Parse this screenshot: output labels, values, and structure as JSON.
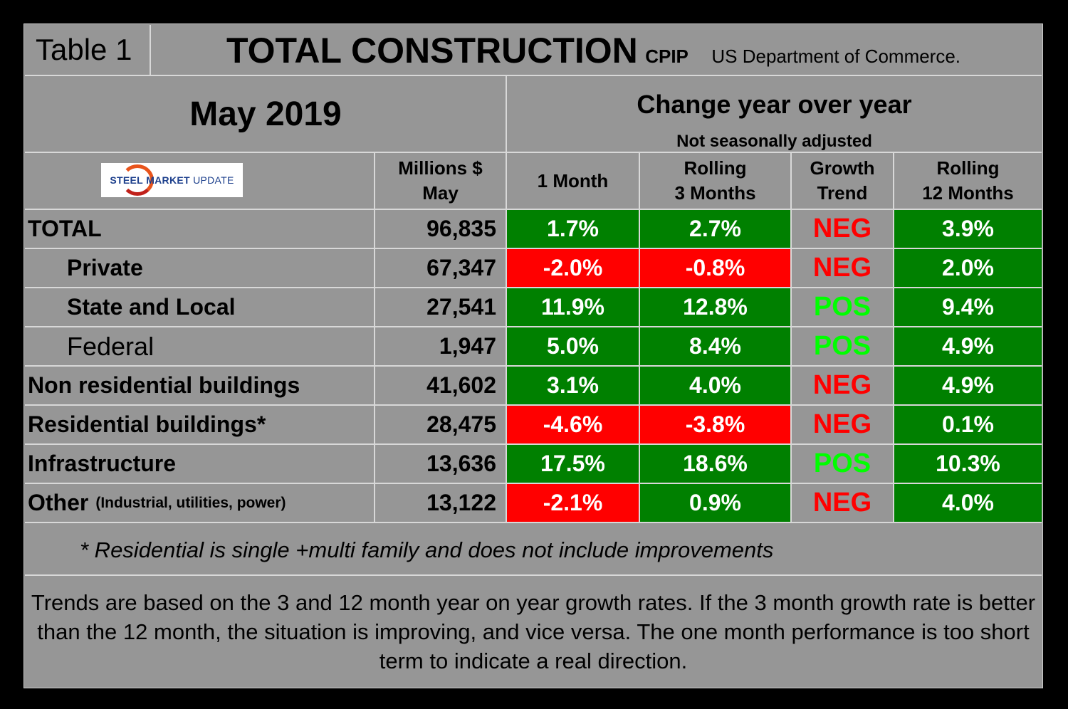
{
  "title": {
    "table_label": "Table 1",
    "main": "TOTAL CONSTRUCTION",
    "sub": "CPIP",
    "source": "US Department of Commerce."
  },
  "period": "May 2019",
  "change_header": "Change year over year",
  "change_sub": "Not seasonally adjusted",
  "logo": {
    "text_bold": "STEEL",
    "text_mid": "MARKET",
    "text_light": "UPDATE"
  },
  "columns": {
    "millions": [
      "Millions $",
      "May"
    ],
    "one_month": [
      "1 Month"
    ],
    "rolling3": [
      "Rolling",
      "3 Months"
    ],
    "trend": [
      "Growth",
      "Trend"
    ],
    "rolling12": [
      "Rolling",
      "12 Months"
    ]
  },
  "colors": {
    "pos_bg": "#008000",
    "neg_bg": "#ff0000",
    "pos_text": "#00ff00",
    "neg_text": "#ff0000",
    "panel": "#969696"
  },
  "rows": [
    {
      "label": "TOTAL",
      "note": "",
      "indent": false,
      "value": "96,835",
      "m1": "1.7%",
      "m1_sign": "g",
      "m3": "2.7%",
      "m3_sign": "g",
      "trend": "NEG",
      "m12": "3.9%"
    },
    {
      "label": "Private",
      "note": "",
      "indent": true,
      "value": "67,347",
      "m1": "-2.0%",
      "m1_sign": "r",
      "m3": "-0.8%",
      "m3_sign": "r",
      "trend": "NEG",
      "m12": "2.0%"
    },
    {
      "label": "State and Local",
      "note": "",
      "indent": true,
      "value": "27,541",
      "m1": "11.9%",
      "m1_sign": "g",
      "m3": "12.8%",
      "m3_sign": "g",
      "trend": "POS",
      "m12": "9.4%"
    },
    {
      "label": "Federal",
      "note": "",
      "indent": true,
      "value": "1,947",
      "m1": "5.0%",
      "m1_sign": "g",
      "m3": "8.4%",
      "m3_sign": "g",
      "trend": "POS",
      "m12": "4.9%"
    },
    {
      "label": "Non residential buildings",
      "note": "",
      "indent": false,
      "value": "41,602",
      "m1": "3.1%",
      "m1_sign": "g",
      "m3": "4.0%",
      "m3_sign": "g",
      "trend": "NEG",
      "m12": "4.9%"
    },
    {
      "label": "Residential buildings*",
      "note": "",
      "indent": false,
      "value": "28,475",
      "m1": "-4.6%",
      "m1_sign": "r",
      "m3": "-3.8%",
      "m3_sign": "r",
      "trend": "NEG",
      "m12": "0.1%"
    },
    {
      "label": "Infrastructure",
      "note": "",
      "indent": false,
      "value": "13,636",
      "m1": "17.5%",
      "m1_sign": "g",
      "m3": "18.6%",
      "m3_sign": "g",
      "trend": "POS",
      "m12": "10.3%"
    },
    {
      "label": "Other",
      "note": "(Industrial, utilities, power)",
      "indent": false,
      "value": "13,122",
      "m1": "-2.1%",
      "m1_sign": "r",
      "m3": "0.9%",
      "m3_sign": "g",
      "trend": "NEG",
      "m12": "4.0%"
    }
  ],
  "footnote": "* Residential is single +multi family and does not include improvements",
  "explanation": "Trends are based on the 3 and 12 month year on year growth rates. If the 3 month growth rate is better than the 12 month, the situation is improving, and vice versa. The one month performance is too short term to indicate a real direction."
}
